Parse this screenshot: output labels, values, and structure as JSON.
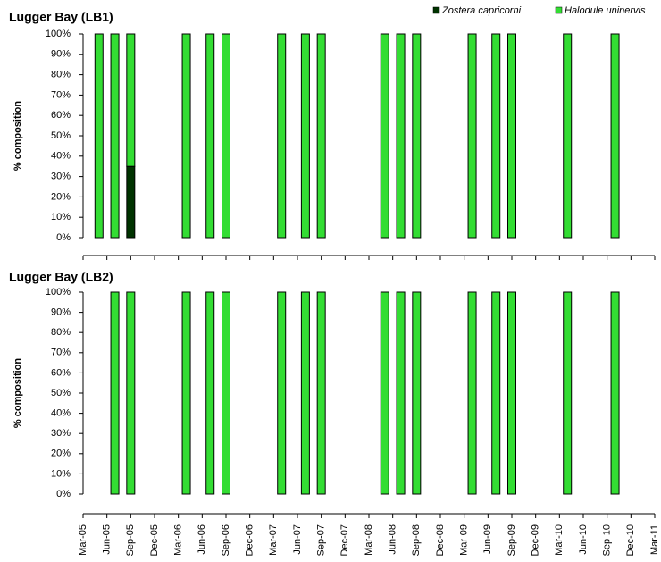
{
  "chart_data": [
    {
      "type": "bar",
      "stacked": true,
      "title": "Lugger Bay (LB1)",
      "ylabel": "% composition",
      "x": [
        "2005-05",
        "2005-07",
        "2005-09",
        "2006-04",
        "2006-07",
        "2006-09",
        "2007-04",
        "2007-07",
        "2007-09",
        "2008-05",
        "2008-07",
        "2008-09",
        "2009-04",
        "2009-07",
        "2009-09",
        "2010-04",
        "2010-10"
      ],
      "series": [
        {
          "name": "Zostera capricorni",
          "color": "#003300",
          "values": [
            0,
            0,
            35,
            0,
            0,
            0,
            0,
            0,
            0,
            0,
            0,
            0,
            0,
            0,
            0,
            0,
            0
          ]
        },
        {
          "name": "Halodule uninervis",
          "color": "#33dd33",
          "values": [
            100,
            100,
            65,
            100,
            100,
            100,
            100,
            100,
            100,
            100,
            100,
            100,
            100,
            100,
            100,
            100,
            100
          ]
        }
      ],
      "xlim": [
        "2005-03",
        "2011-03"
      ],
      "ylim": [
        0,
        100
      ],
      "yticks": [
        {
          "value": 0,
          "label": "0%"
        },
        {
          "value": 10,
          "label": "10%"
        },
        {
          "value": 20,
          "label": "20%"
        },
        {
          "value": 30,
          "label": "30%"
        },
        {
          "value": 40,
          "label": "40%"
        },
        {
          "value": 50,
          "label": "50%"
        },
        {
          "value": 60,
          "label": "60%"
        },
        {
          "value": 70,
          "label": "70%"
        },
        {
          "value": 80,
          "label": "80%"
        },
        {
          "value": 90,
          "label": "90%"
        },
        {
          "value": 100,
          "label": "100%"
        }
      ]
    },
    {
      "type": "bar",
      "stacked": true,
      "title": "Lugger Bay (LB2)",
      "ylabel": "% composition",
      "x": [
        "2005-07",
        "2005-09",
        "2006-04",
        "2006-07",
        "2006-09",
        "2007-04",
        "2007-07",
        "2007-09",
        "2008-05",
        "2008-07",
        "2008-09",
        "2009-04",
        "2009-07",
        "2009-09",
        "2010-04",
        "2010-10"
      ],
      "series": [
        {
          "color": "#003300",
          "values": [
            0,
            0,
            0,
            0,
            0,
            0,
            0,
            0,
            0,
            0,
            0,
            0,
            0,
            0,
            0,
            0
          ]
        },
        {
          "color": "#33dd33",
          "values": [
            100,
            100,
            100,
            100,
            100,
            100,
            100,
            100,
            100,
            100,
            100,
            100,
            100,
            100,
            100,
            100
          ]
        }
      ],
      "xlim": [
        "2005-03",
        "2011-03"
      ],
      "ylim": [
        0,
        100
      ],
      "yticks": [
        {
          "value": 0,
          "label": "0%"
        },
        {
          "value": 10,
          "label": "10%"
        },
        {
          "value": 20,
          "label": "20%"
        },
        {
          "value": 30,
          "label": "30%"
        },
        {
          "value": 40,
          "label": "40%"
        },
        {
          "value": 50,
          "label": "50%"
        },
        {
          "value": 60,
          "label": "60%"
        },
        {
          "value": 70,
          "label": "70%"
        },
        {
          "value": 80,
          "label": "80%"
        },
        {
          "value": 90,
          "label": "90%"
        },
        {
          "value": 100,
          "label": "100%"
        }
      ],
      "xticks": [
        {
          "value": "2005-03",
          "label": "Mar-05"
        },
        {
          "value": "2005-06",
          "label": "Jun-05"
        },
        {
          "value": "2005-09",
          "label": "Sep-05"
        },
        {
          "value": "2005-12",
          "label": "Dec-05"
        },
        {
          "value": "2006-03",
          "label": "Mar-06"
        },
        {
          "value": "2006-06",
          "label": "Jun-06"
        },
        {
          "value": "2006-09",
          "label": "Sep-06"
        },
        {
          "value": "2006-12",
          "label": "Dec-06"
        },
        {
          "value": "2007-03",
          "label": "Mar-07"
        },
        {
          "value": "2007-06",
          "label": "Jun-07"
        },
        {
          "value": "2007-09",
          "label": "Sep-07"
        },
        {
          "value": "2007-12",
          "label": "Dec-07"
        },
        {
          "value": "2008-03",
          "label": "Mar-08"
        },
        {
          "value": "2008-06",
          "label": "Jun-08"
        },
        {
          "value": "2008-09",
          "label": "Sep-08"
        },
        {
          "value": "2008-12",
          "label": "Dec-08"
        },
        {
          "value": "2009-03",
          "label": "Mar-09"
        },
        {
          "value": "2009-06",
          "label": "Jun-09"
        },
        {
          "value": "2009-09",
          "label": "Sep-09"
        },
        {
          "value": "2009-12",
          "label": "Dec-09"
        },
        {
          "value": "2010-03",
          "label": "Mar-10"
        },
        {
          "value": "2010-06",
          "label": "Jun-10"
        },
        {
          "value": "2010-09",
          "label": "Sep-10"
        },
        {
          "value": "2010-12",
          "label": "Dec-10"
        },
        {
          "value": "2011-03",
          "label": "Mar-11"
        }
      ]
    }
  ]
}
